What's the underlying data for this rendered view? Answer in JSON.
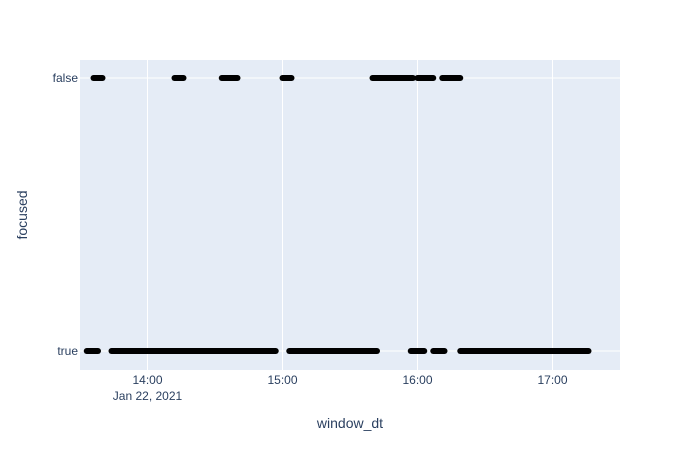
{
  "chart_data": {
    "type": "scatter",
    "xlabel": "window_dt",
    "ylabel": "focused",
    "x_axis": {
      "type": "date",
      "range": [
        "2021-01-22 13:30",
        "2021-01-22 17:30"
      ],
      "ticks": [
        {
          "value": "2021-01-22 14:00",
          "label": "14:00",
          "sublabel": "Jan 22, 2021"
        },
        {
          "value": "2021-01-22 15:00",
          "label": "15:00",
          "sublabel": ""
        },
        {
          "value": "2021-01-22 16:00",
          "label": "16:00",
          "sublabel": ""
        },
        {
          "value": "2021-01-22 17:00",
          "label": "17:00",
          "sublabel": ""
        }
      ]
    },
    "y_axis": {
      "type": "category",
      "categories": [
        "true",
        "false"
      ]
    },
    "grid": true,
    "colors": {
      "plot_bg": "#e5ecf6",
      "grid": "#ffffff",
      "marker": "#000000",
      "text": "#2a3f5f"
    },
    "segments": [
      {
        "y": "false",
        "start": "2021-01-22 13:36",
        "end": "2021-01-22 13:40"
      },
      {
        "y": "false",
        "start": "2021-01-22 14:12",
        "end": "2021-01-22 14:16"
      },
      {
        "y": "false",
        "start": "2021-01-22 14:33",
        "end": "2021-01-22 14:40"
      },
      {
        "y": "false",
        "start": "2021-01-22 15:00",
        "end": "2021-01-22 15:04"
      },
      {
        "y": "false",
        "start": "2021-01-22 15:40",
        "end": "2021-01-22 15:58"
      },
      {
        "y": "false",
        "start": "2021-01-22 16:00",
        "end": "2021-01-22 16:07"
      },
      {
        "y": "false",
        "start": "2021-01-22 16:11",
        "end": "2021-01-22 16:19"
      },
      {
        "y": "true",
        "start": "2021-01-22 13:33",
        "end": "2021-01-22 13:38"
      },
      {
        "y": "true",
        "start": "2021-01-22 13:44",
        "end": "2021-01-22 14:57"
      },
      {
        "y": "true",
        "start": "2021-01-22 15:03",
        "end": "2021-01-22 15:42"
      },
      {
        "y": "true",
        "start": "2021-01-22 15:57",
        "end": "2021-01-22 16:03"
      },
      {
        "y": "true",
        "start": "2021-01-22 16:07",
        "end": "2021-01-22 16:12"
      },
      {
        "y": "true",
        "start": "2021-01-22 16:19",
        "end": "2021-01-22 17:16"
      }
    ]
  }
}
